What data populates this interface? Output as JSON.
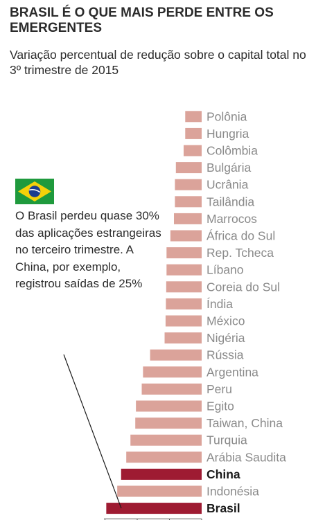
{
  "title": "BRASIL É O QUE  MAIS PERDE ENTRE OS EMERGENTES",
  "subtitle": "Variação percentual de redução sobre o capital total no 3º trimestre de 2015",
  "annotation": "O Brasil perdeu quase 30% das aplicações estrangeiras no terceiro trimestre. A China, por exemplo, registrou saídas de 25%",
  "colors": {
    "bar": "#dba39a",
    "highlight": "#9e1b32",
    "text": "#8a8a8a",
    "highlight_text": "#1a1a1a"
  },
  "chart_data": {
    "type": "bar",
    "orientation": "horizontal",
    "title": "BRASIL É O QUE  MAIS PERDE ENTRE OS EMERGENTES",
    "subtitle": "Variação percentual de redução sobre o capital total no 3º trimestre de 2015",
    "categories": [
      "Polônia",
      "Hungria",
      "Colômbia",
      "Bulgária",
      "Ucrânia",
      "Tailândia",
      "Marrocos",
      "África do Sul",
      "Rep. Tcheca",
      "Líbano",
      "Coreia do Sul",
      "Índia",
      "México",
      "Nigéria",
      "Rússia",
      "Argentina",
      "Peru",
      "Egito",
      "Taiwan, China",
      "Turquia",
      "Arábia Saudita",
      "China",
      "Indonésia",
      "Brasil"
    ],
    "values": [
      5.1,
      5.1,
      5.6,
      8.0,
      8.3,
      8.3,
      8.6,
      9.7,
      10.9,
      10.9,
      11.0,
      11.1,
      11.2,
      11.5,
      16.0,
      18.2,
      18.6,
      20.4,
      20.6,
      22.1,
      23.4,
      25.0,
      26.2,
      29.6
    ],
    "highlight": [
      "China",
      "Brasil"
    ],
    "xlim": [
      0,
      30
    ]
  }
}
